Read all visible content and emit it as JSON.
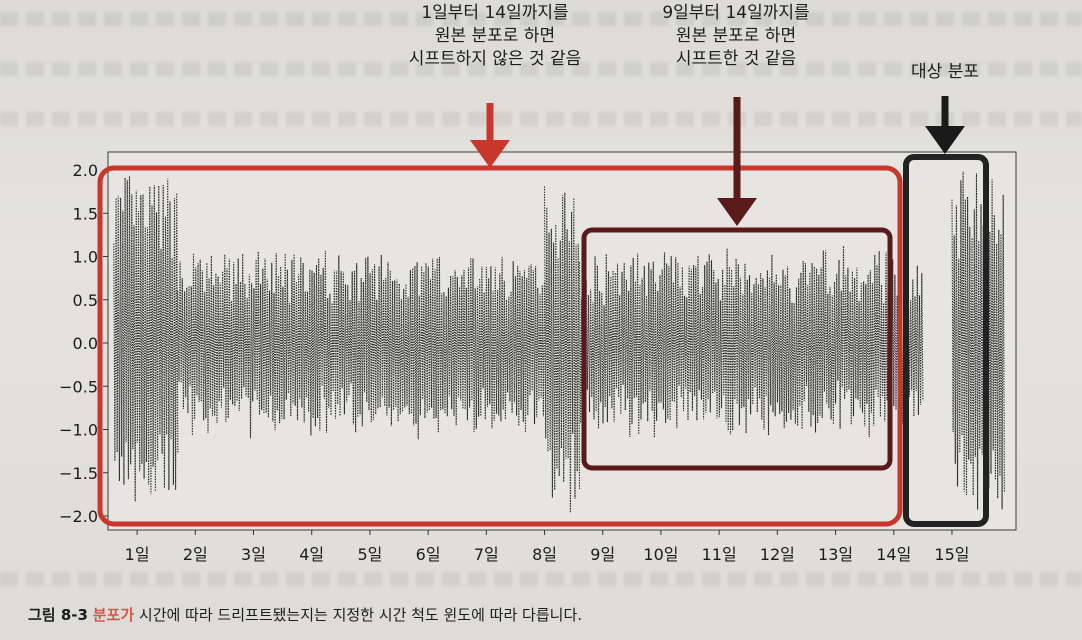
{
  "annotations": {
    "left": "1일부터 14일까지를\n원본 분포로 하면\n시프트하지 않은 것 같음",
    "middle": "9일부터 14일까지를\n원본 분포로 하면\n시프트한 것 같음",
    "right": "대상 분포"
  },
  "caption": {
    "label": "그림 8-3",
    "text_accent": "분포가",
    "text": " 시간에 따라 드리프트됐는지는 지정한 시간 척도 윈도에 따라 다릅니다."
  },
  "colors": {
    "red_box": "#c9372c",
    "dark_box": "#5a1a1a",
    "target_box": "#222222",
    "signal": "#2a2a2a"
  },
  "chart_data": {
    "type": "line",
    "yticks": [
      "2.0",
      "1.5",
      "1.0",
      "0.5",
      "0.0",
      "−0.5",
      "−1.0",
      "−1.5",
      "−2.0"
    ],
    "ytick_values": [
      2.0,
      1.5,
      1.0,
      0.5,
      0.0,
      -0.5,
      -1.0,
      -1.5,
      -2.0
    ],
    "ylim": [
      -2.05,
      2.05
    ],
    "xticks": [
      "1일",
      "2일",
      "3일",
      "4일",
      "5일",
      "6일",
      "7일",
      "8일",
      "9일",
      "10일",
      "11일",
      "12일",
      "13일",
      "14일",
      "15일"
    ],
    "xlim": [
      0.5,
      16.1
    ],
    "series": [
      {
        "x_range": [
          0.6,
          1.7
        ],
        "amplitude": 1.9
      },
      {
        "x_range": [
          1.7,
          8.0
        ],
        "amplitude": 1.0
      },
      {
        "x_range": [
          8.0,
          8.6
        ],
        "amplitude": 1.9
      },
      {
        "x_range": [
          8.6,
          14.5
        ],
        "amplitude": 1.0
      },
      {
        "x_range": [
          15.0,
          15.9
        ],
        "amplitude": 1.9
      }
    ]
  }
}
